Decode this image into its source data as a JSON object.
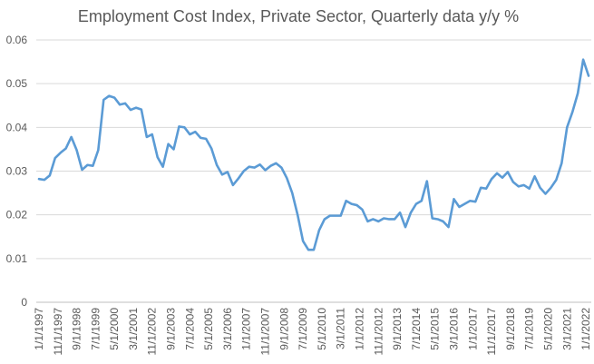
{
  "chart_data": {
    "type": "line",
    "title": "Employment Cost Index, Private Sector, Quarterly data y/y %",
    "xlabel": "",
    "ylabel": "",
    "ylim": [
      0,
      0.06
    ],
    "yticks": [
      "0",
      "0.01",
      "0.02",
      "0.03",
      "0.04",
      "0.05",
      "0.06"
    ],
    "grid": true,
    "legend": "none",
    "line_color": "#5b9bd5",
    "x_tick_labels": [
      "1/1/1997",
      "11/1/1997",
      "9/1/1998",
      "7/1/1999",
      "5/1/2000",
      "3/1/2001",
      "11/1/2002",
      "9/1/2003",
      "7/1/2004",
      "5/1/2005",
      "3/1/2006",
      "1/1/2007",
      "11/1/2007",
      "9/1/2008",
      "7/1/2009",
      "5/1/2010",
      "3/1/2011",
      "1/1/2012",
      "11/1/2012",
      "9/1/2013",
      "7/1/2014",
      "5/1/2015",
      "3/1/2016",
      "1/1/2017",
      "11/1/2017",
      "9/1/2018",
      "7/1/2019",
      "5/1/2020",
      "3/1/2021",
      "1/1/2022"
    ],
    "series": [
      {
        "values": [
          0.0282,
          0.028,
          0.029,
          0.033,
          0.0342,
          0.0352,
          0.0378,
          0.0348,
          0.0303,
          0.0314,
          0.0312,
          0.0348,
          0.0463,
          0.0472,
          0.0468,
          0.0452,
          0.0455,
          0.044,
          0.0445,
          0.0441,
          0.0378,
          0.0384,
          0.0332,
          0.031,
          0.0362,
          0.035,
          0.0402,
          0.04,
          0.0384,
          0.039,
          0.0376,
          0.0374,
          0.0352,
          0.0314,
          0.0292,
          0.0298,
          0.0268,
          0.0283,
          0.03,
          0.031,
          0.0308,
          0.0315,
          0.0302,
          0.0312,
          0.0318,
          0.0308,
          0.0284,
          0.025,
          0.02,
          0.014,
          0.012,
          0.012,
          0.0165,
          0.019,
          0.0198,
          0.0198,
          0.0198,
          0.0232,
          0.0225,
          0.0222,
          0.0212,
          0.0185,
          0.019,
          0.0185,
          0.0192,
          0.019,
          0.019,
          0.0205,
          0.0172,
          0.0205,
          0.0225,
          0.0232,
          0.0277,
          0.0192,
          0.019,
          0.0185,
          0.0172,
          0.0236,
          0.0218,
          0.0225,
          0.0232,
          0.023,
          0.0262,
          0.026,
          0.0282,
          0.0295,
          0.0285,
          0.0298,
          0.0275,
          0.0265,
          0.0268,
          0.026,
          0.0288,
          0.0262,
          0.0248,
          0.0262,
          0.028,
          0.0318,
          0.04,
          0.0435,
          0.0478,
          0.0555,
          0.0518
        ]
      }
    ]
  }
}
